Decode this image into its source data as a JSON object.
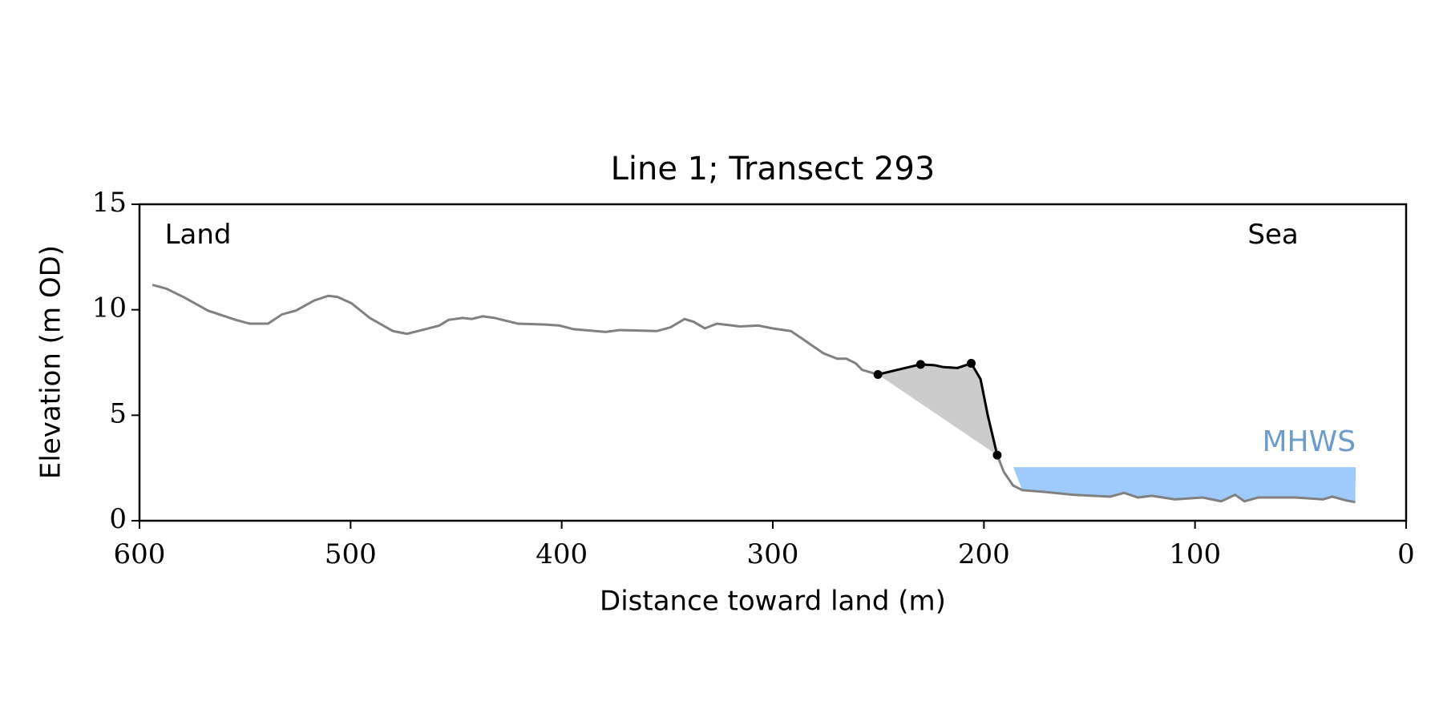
{
  "chart_data": {
    "type": "line",
    "title": "Line 1; Transect 293",
    "xlabel": "Distance toward land (m)",
    "ylabel": "Elevation (m OD)",
    "xlim": [
      600,
      0
    ],
    "ylim": [
      0,
      15
    ],
    "xticks": [
      600,
      500,
      400,
      300,
      200,
      100,
      0
    ],
    "yticks": [
      0,
      5,
      10,
      15
    ],
    "annotations": [
      {
        "text": "Land",
        "x": 588,
        "y": 13.5
      },
      {
        "text": "Sea",
        "x": 63,
        "y": 13.5
      }
    ],
    "series": [
      {
        "color": "#808080",
        "x": [
          593.9,
          587.3,
          578.5,
          567.6,
          554.4,
          547.8,
          539.1,
          532.5,
          525.9,
          517.2,
          510.6,
          506.2,
          499.6,
          490.9,
          479.9,
          473.3,
          464.6,
          458.0,
          453.6,
          447.0,
          442.6,
          437.4,
          431.7,
          420.7,
          407.6,
          401.0,
          394.4,
          379.1,
          372.5,
          355.0,
          348.4,
          341.8,
          337.5,
          332.2,
          326.5,
          315.5,
          306.8,
          300.2,
          291.4,
          284.9,
          276.1,
          269.5,
          265.1,
          260.7,
          257.7,
          250.2,
          241.0,
          230.0,
          223.5,
          219.1,
          212.5,
          206.0,
          201.6,
          198.1,
          193.7,
          190.6,
          186.2,
          181.8,
          170.9,
          157.7,
          140.2,
          133.6,
          127.0,
          120.5,
          109.5,
          96.4,
          87.6,
          81.0,
          76.6,
          70.1,
          52.5,
          39.4,
          35.0,
          28.4,
          24.1
        ],
        "values": [
          11.18,
          11.0,
          10.57,
          9.96,
          9.52,
          9.34,
          9.34,
          9.78,
          9.96,
          10.44,
          10.66,
          10.61,
          10.31,
          9.61,
          8.99,
          8.86,
          9.08,
          9.25,
          9.52,
          9.61,
          9.56,
          9.69,
          9.61,
          9.34,
          9.3,
          9.25,
          9.08,
          8.95,
          9.04,
          8.99,
          9.17,
          9.56,
          9.43,
          9.12,
          9.34,
          9.21,
          9.25,
          9.12,
          8.99,
          8.55,
          7.94,
          7.68,
          7.68,
          7.46,
          7.15,
          6.93,
          7.15,
          7.41,
          7.37,
          7.28,
          7.24,
          7.46,
          6.71,
          4.96,
          3.11,
          2.32,
          1.67,
          1.45,
          1.36,
          1.23,
          1.14,
          1.32,
          1.1,
          1.18,
          1.01,
          1.1,
          0.92,
          1.23,
          0.92,
          1.1,
          1.1,
          1.01,
          1.14,
          0.96,
          0.88
        ]
      },
      {
        "color": "#000000",
        "fill": "#cccccc",
        "x": [
          250.2,
          241.0,
          230.0,
          223.5,
          219.1,
          212.5,
          206.0,
          201.6,
          198.1,
          193.7
        ],
        "values": [
          6.93,
          7.15,
          7.41,
          7.37,
          7.28,
          7.24,
          7.46,
          6.71,
          4.96,
          3.11
        ]
      }
    ],
    "markers": {
      "color": "#000000",
      "x": [
        250.2,
        230.0,
        206.0,
        193.7
      ],
      "values": [
        6.93,
        7.41,
        7.46,
        3.11
      ]
    },
    "mhws": {
      "label": "MHWS",
      "level": 2.54,
      "x_range": [
        186.1,
        23.9
      ],
      "color": "#9fcbfc",
      "label_color": "#6c9ccc"
    }
  }
}
